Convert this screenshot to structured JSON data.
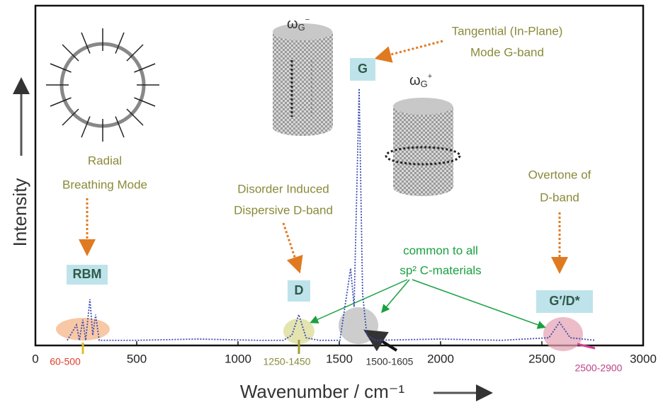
{
  "chart_data": {
    "type": "line",
    "x_label": "Wavenumber / cm⁻¹",
    "y_label": "Intensity",
    "xlim": [
      0,
      3000
    ],
    "xticks": [
      0,
      500,
      1000,
      1500,
      2000,
      2500,
      3000
    ],
    "ylim": [
      0,
      100
    ],
    "grid": false,
    "color": "#3b4cb0",
    "x": [
      157,
      203,
      217,
      234,
      248,
      269,
      283,
      297,
      315,
      500,
      800,
      1100,
      1224,
      1266,
      1300,
      1336,
      1400,
      1503,
      1556,
      1573,
      1598,
      1615,
      1636,
      1678,
      2000,
      2300,
      2535,
      2587,
      2640,
      2762
    ],
    "values": [
      2,
      8,
      2,
      10,
      2,
      18,
      4,
      12,
      2,
      2,
      2.5,
      2,
      2,
      4,
      12,
      3,
      2,
      2,
      30,
      15,
      100,
      20,
      4,
      2,
      2.5,
      2,
      3,
      9,
      3,
      2
    ],
    "peak_labels": [
      "RBM",
      "D",
      "G",
      "G′/D*"
    ],
    "range_labels": [
      "60-500",
      "1250-1450",
      "1500-1605",
      "2500-2900"
    ],
    "annotations": [
      [
        "Radial",
        "Breathing Mode"
      ],
      [
        "Disorder Induced",
        "Dispersive D-band"
      ],
      [
        "Tangential (In-Plane)",
        "Mode G-band"
      ],
      [
        "Overtone of",
        "D-band"
      ],
      [
        "common to all",
        "sp² C-materials"
      ]
    ],
    "mode_labels": [
      [
        "ω",
        "G",
        "−"
      ],
      [
        "ω",
        "G",
        "+"
      ]
    ]
  }
}
